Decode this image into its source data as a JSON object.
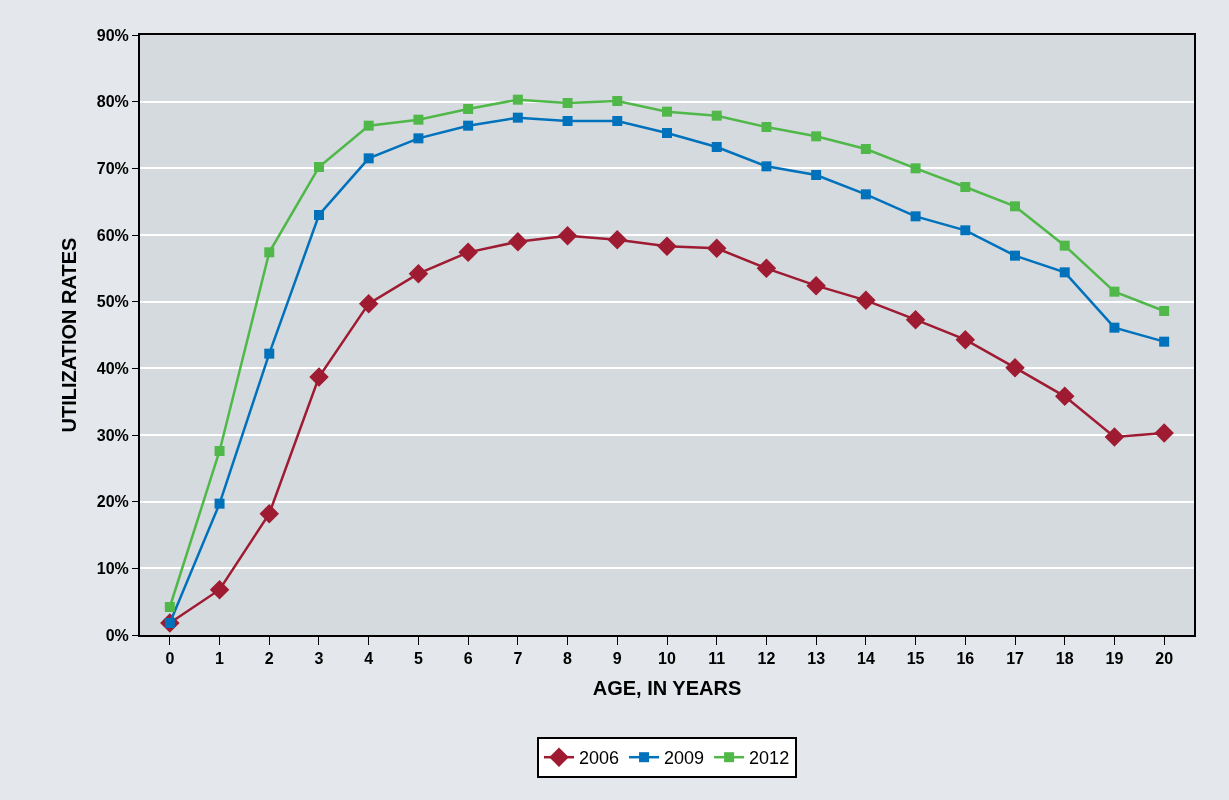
{
  "chart_data": {
    "type": "line",
    "xlabel": "AGE, IN YEARS",
    "ylabel": "UTILIZATION RATES",
    "x": [
      0,
      1,
      2,
      3,
      4,
      5,
      6,
      7,
      8,
      9,
      10,
      11,
      12,
      13,
      14,
      15,
      16,
      17,
      18,
      19,
      20
    ],
    "xlim": [
      -0.6,
      20.6
    ],
    "xticks": [
      0,
      1,
      2,
      3,
      4,
      5,
      6,
      7,
      8,
      9,
      10,
      11,
      12,
      13,
      14,
      15,
      16,
      17,
      18,
      19,
      20
    ],
    "ylim": [
      0,
      90
    ],
    "yticks": [
      {
        "value": 0,
        "label": "0%"
      },
      {
        "value": 10,
        "label": "10%"
      },
      {
        "value": 20,
        "label": "20%"
      },
      {
        "value": 30,
        "label": "30%"
      },
      {
        "value": 40,
        "label": "40%"
      },
      {
        "value": 50,
        "label": "50%"
      },
      {
        "value": 60,
        "label": "60%"
      },
      {
        "value": 70,
        "label": "70%"
      },
      {
        "value": 80,
        "label": "80%"
      },
      {
        "value": 90,
        "label": "90%"
      }
    ],
    "grid": "y",
    "legend": "bottom",
    "series": [
      {
        "name": "2006",
        "color": "#9e1b32",
        "marker": "diamond",
        "values": [
          1.8,
          6.8,
          18.2,
          38.7,
          49.7,
          54.2,
          57.4,
          59.0,
          59.9,
          59.3,
          58.3,
          58.0,
          55.0,
          52.4,
          50.2,
          47.3,
          44.3,
          40.1,
          35.8,
          29.7,
          30.3
        ]
      },
      {
        "name": "2009",
        "color": "#0072bc",
        "marker": "square",
        "values": [
          1.8,
          19.7,
          42.2,
          63.0,
          71.5,
          74.5,
          76.4,
          77.6,
          77.1,
          77.1,
          75.3,
          73.2,
          70.3,
          69.0,
          66.1,
          62.8,
          60.7,
          56.9,
          54.4,
          46.1,
          44.0
        ]
      },
      {
        "name": "2012",
        "color": "#50b848",
        "marker": "square",
        "values": [
          4.2,
          27.6,
          57.4,
          70.2,
          76.4,
          77.3,
          78.9,
          80.3,
          79.8,
          80.1,
          78.5,
          77.9,
          76.2,
          74.8,
          72.9,
          70.0,
          67.2,
          64.3,
          58.4,
          51.5,
          48.6
        ]
      }
    ]
  }
}
